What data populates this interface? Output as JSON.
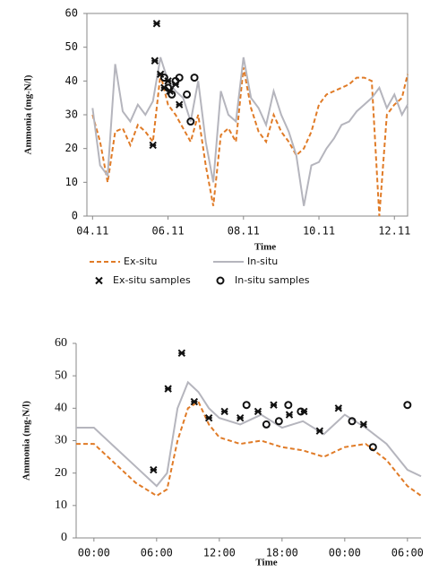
{
  "chart_data": [
    {
      "type": "line",
      "ylabel": "Ammonia (mg-N/l)",
      "xlabel": "Time",
      "xlim": [
        3.85,
        12.35
      ],
      "ylim": [
        0,
        60
      ],
      "xticks": [
        {
          "value": 4,
          "label": "04.11"
        },
        {
          "value": 6,
          "label": "06.11"
        },
        {
          "value": 8,
          "label": "08.11"
        },
        {
          "value": 10,
          "label": "10.11"
        },
        {
          "value": 12,
          "label": "12.11"
        }
      ],
      "yticks": [
        0,
        10,
        20,
        30,
        40,
        50,
        60
      ],
      "x": [
        4.0,
        4.2,
        4.4,
        4.6,
        4.8,
        5.0,
        5.2,
        5.4,
        5.6,
        5.8,
        6.0,
        6.2,
        6.4,
        6.6,
        6.8,
        7.0,
        7.2,
        7.4,
        7.6,
        7.8,
        8.0,
        8.2,
        8.4,
        8.6,
        8.8,
        9.0,
        9.2,
        9.4,
        9.6,
        9.8,
        10.0,
        10.2,
        10.4,
        10.6,
        10.8,
        11.0,
        11.2,
        11.4,
        11.6,
        11.8,
        12.0,
        12.2,
        12.35
      ],
      "legend": true,
      "frame": true,
      "series": [
        {
          "name": "Ex-situ",
          "type": "line",
          "dashed": true,
          "color": "#e07b27",
          "values": [
            30,
            22,
            10,
            25,
            26,
            21,
            27,
            25,
            22,
            42,
            33,
            30,
            26,
            22,
            30,
            15,
            3,
            24,
            26,
            22,
            44,
            32,
            25,
            22,
            30,
            25,
            22,
            18,
            20,
            25,
            33,
            36,
            37,
            38,
            39,
            41,
            41,
            40,
            0,
            30,
            33,
            35,
            42
          ]
        },
        {
          "name": "In-situ",
          "type": "line",
          "dashed": false,
          "color": "#b5b5bd",
          "values": [
            32,
            15,
            12,
            45,
            31,
            28,
            33,
            30,
            34,
            47,
            40,
            37,
            35,
            28,
            40,
            22,
            10,
            37,
            30,
            28,
            47,
            35,
            32,
            27,
            37,
            30,
            25,
            18,
            3,
            15,
            16,
            20,
            23,
            27,
            28,
            31,
            33,
            35,
            38,
            32,
            36,
            30,
            33
          ]
        },
        {
          "name": "Ex-situ samples",
          "type": "scatter",
          "marker": "x",
          "color": "#111111",
          "x": [
            5.6,
            5.65,
            5.7,
            5.8,
            5.9,
            6.0,
            6.05,
            6.2,
            6.3
          ],
          "values": [
            21,
            46,
            57,
            42,
            38,
            40,
            37,
            39,
            33
          ]
        },
        {
          "name": "In-situ samples",
          "type": "scatter",
          "marker": "o",
          "color": "#111111",
          "x": [
            5.9,
            6.0,
            6.1,
            6.2,
            6.3,
            6.5,
            6.6,
            6.7
          ],
          "values": [
            41,
            38,
            36,
            40,
            41,
            36,
            28,
            41
          ]
        }
      ]
    },
    {
      "type": "line",
      "ylabel": "Ammonia (mg-N/l)",
      "xlabel": "Time",
      "xlim": [
        -1.7,
        31.3
      ],
      "ylim": [
        0,
        60
      ],
      "xticks": [
        {
          "value": 0,
          "label": "00:00"
        },
        {
          "value": 6,
          "label": "06:00"
        },
        {
          "value": 12,
          "label": "12:00"
        },
        {
          "value": 18,
          "label": "18:00"
        },
        {
          "value": 24,
          "label": "00:00"
        },
        {
          "value": 30,
          "label": "06:00"
        }
      ],
      "yticks": [
        0,
        10,
        20,
        30,
        40,
        50,
        60
      ],
      "x": [
        -1.7,
        0,
        2,
        4,
        6,
        7,
        8,
        9,
        10,
        11,
        12,
        14,
        16,
        18,
        20,
        22,
        24,
        26,
        28,
        30,
        31.3
      ],
      "legend": false,
      "frame": false,
      "series": [
        {
          "name": "Ex-situ",
          "type": "line",
          "dashed": true,
          "color": "#e07b27",
          "values": [
            29,
            29,
            23,
            17,
            13,
            15,
            30,
            40,
            42,
            35,
            31,
            29,
            30,
            28,
            27,
            25,
            28,
            29,
            24,
            16,
            13
          ]
        },
        {
          "name": "In-situ",
          "type": "line",
          "dashed": false,
          "color": "#b5b5bd",
          "values": [
            34,
            34,
            28,
            22,
            16,
            20,
            40,
            48,
            45,
            40,
            37,
            35,
            38,
            34,
            36,
            32,
            38,
            34,
            29,
            21,
            19
          ]
        },
        {
          "name": "Ex-situ samples",
          "type": "scatter",
          "marker": "x",
          "color": "#111111",
          "x": [
            5.7,
            7.1,
            8.4,
            9.6,
            11.0,
            12.5,
            14.0,
            15.7,
            17.2,
            18.7,
            20.1,
            21.6,
            23.4,
            25.8
          ],
          "values": [
            21,
            46,
            57,
            42,
            37,
            39,
            37,
            39,
            41,
            38,
            39,
            33,
            40,
            35
          ]
        },
        {
          "name": "In-situ samples",
          "type": "scatter",
          "marker": "o",
          "color": "#111111",
          "x": [
            14.6,
            16.5,
            17.7,
            18.6,
            19.8,
            24.7,
            26.7,
            30.0
          ],
          "values": [
            41,
            35,
            36,
            41,
            39,
            36,
            28,
            41
          ]
        }
      ]
    }
  ]
}
